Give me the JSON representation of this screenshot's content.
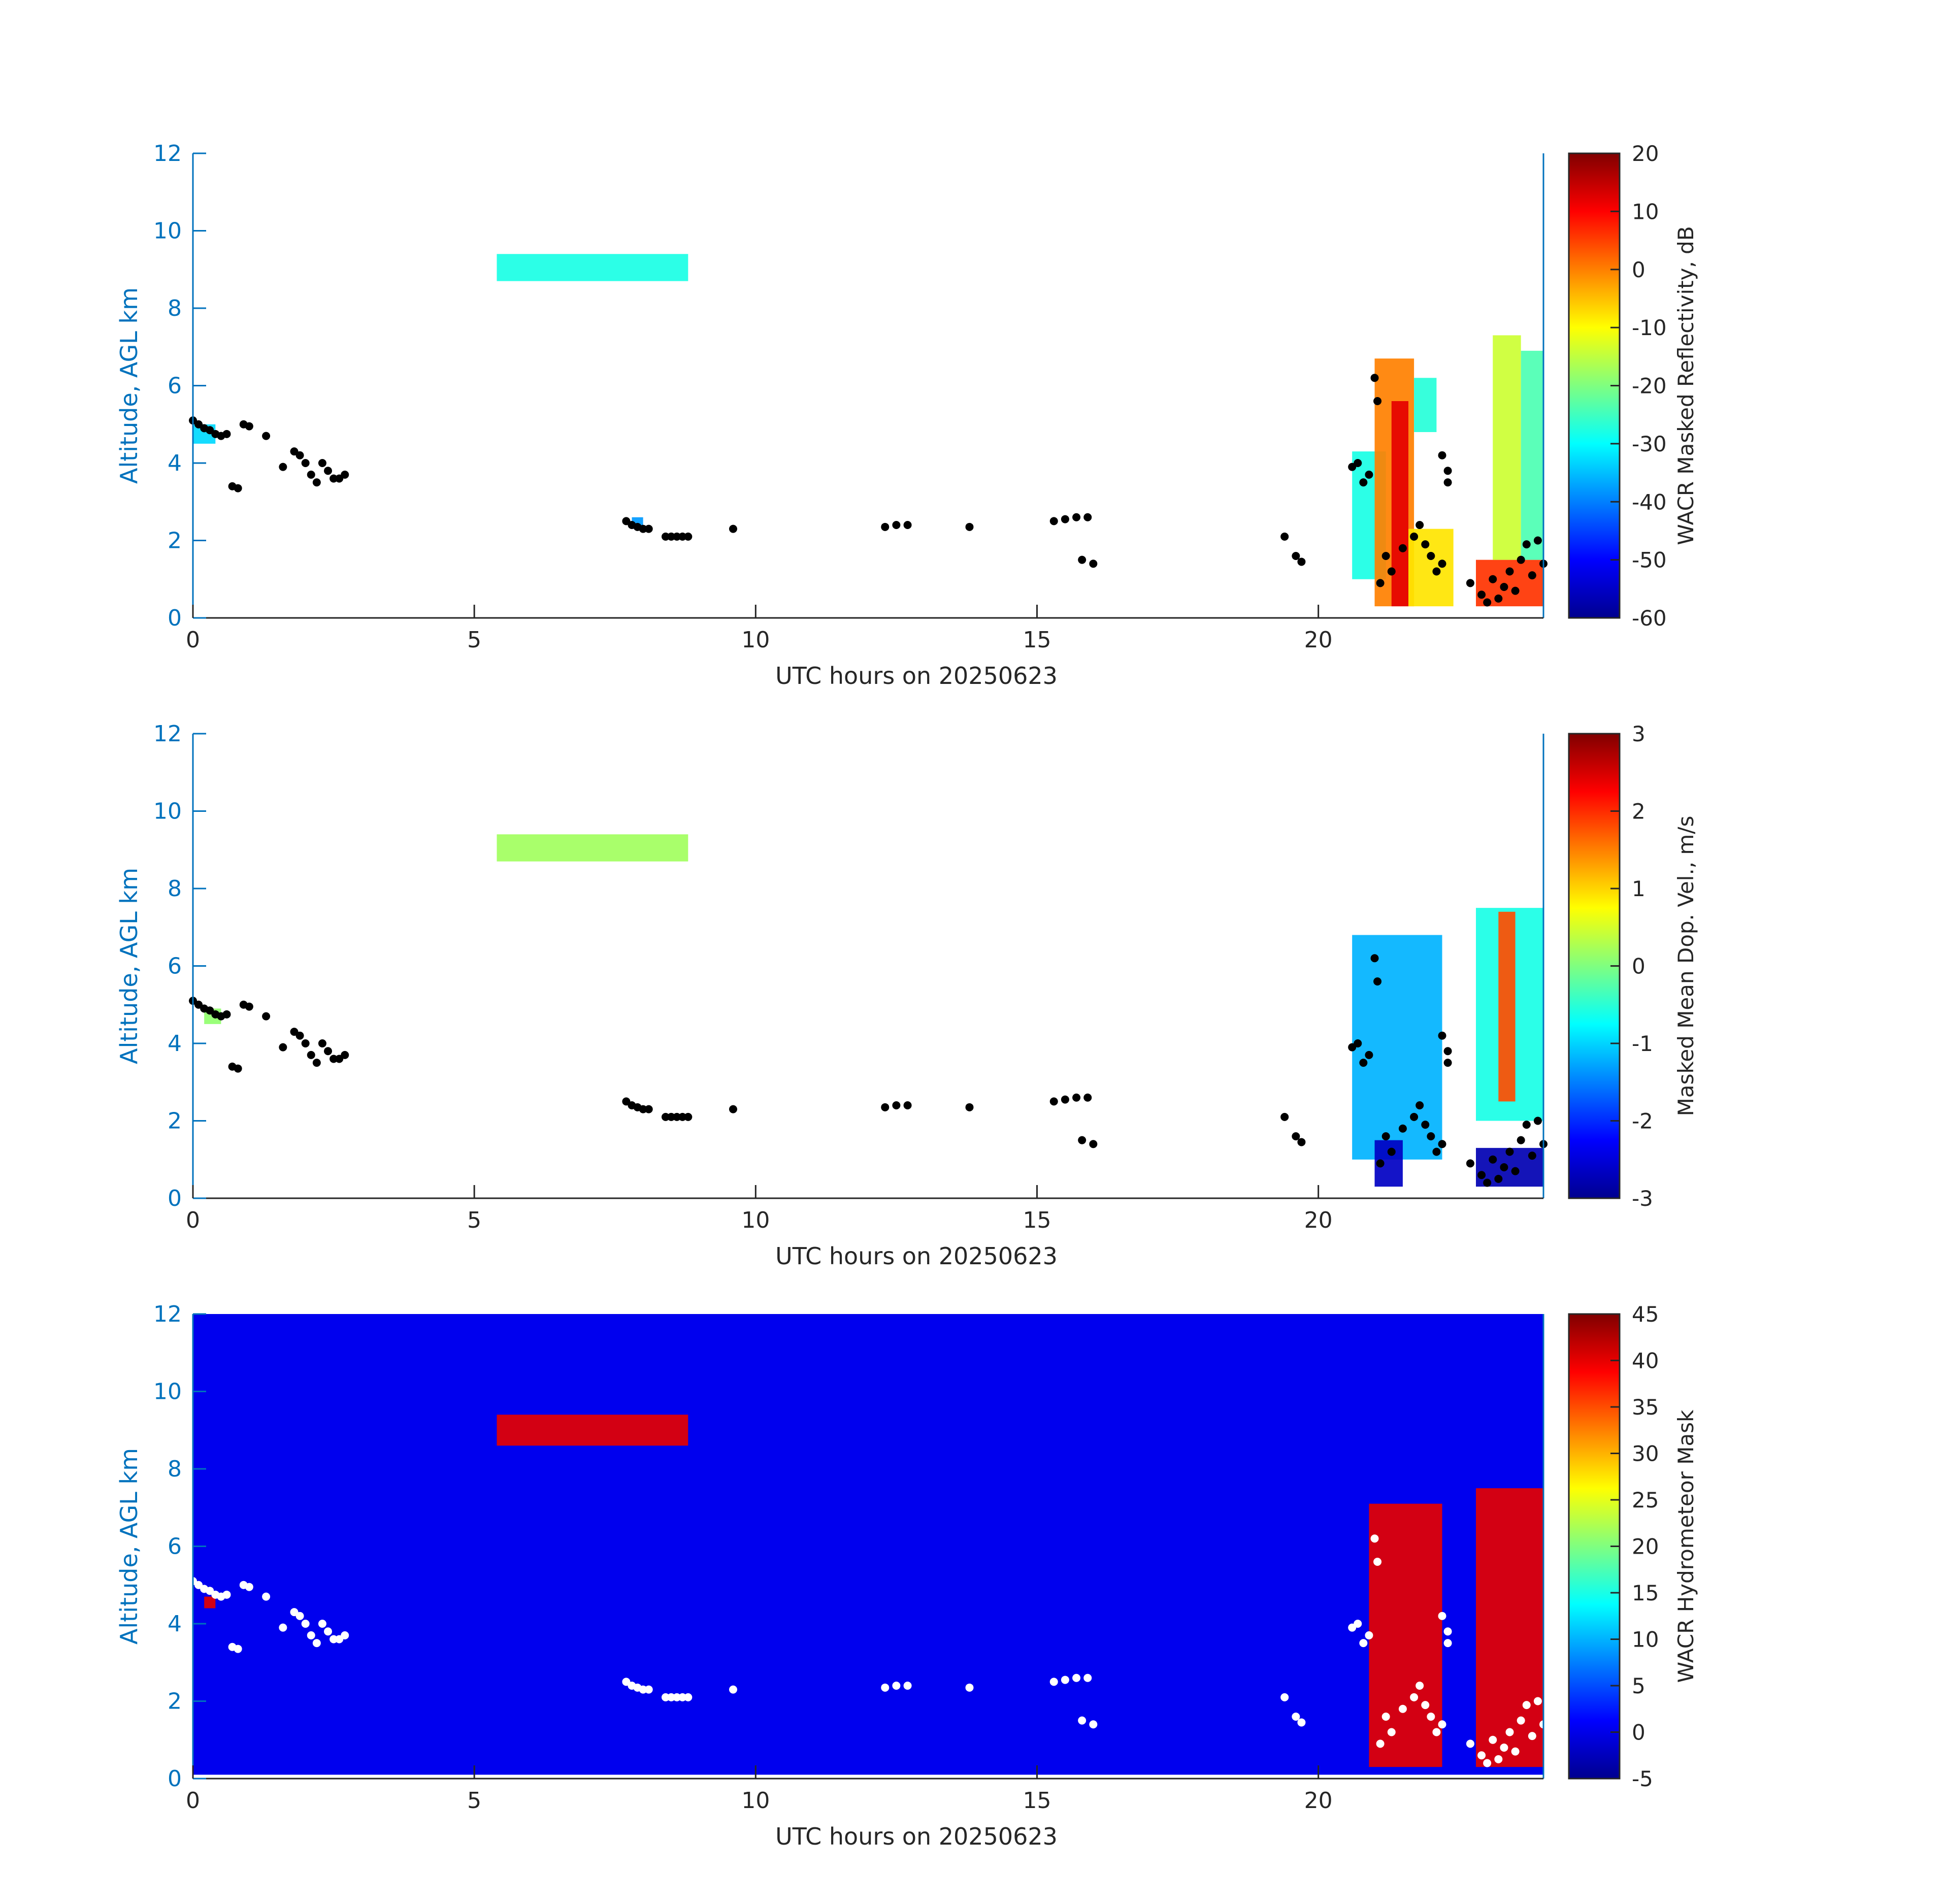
{
  "figure": {
    "panels": [
      {
        "id": "reflectivity",
        "colorbar_label": "WACR Masked Reflectivity, dB",
        "clim": [
          -60,
          20
        ],
        "cbar_ticks": [
          20,
          10,
          0,
          -10,
          -20,
          -30,
          -40,
          -50,
          -60
        ],
        "background": "none",
        "cloud_bases_color": "#000000"
      },
      {
        "id": "doppler",
        "colorbar_label": "Masked Mean Dop. Vel., m/s",
        "clim": [
          -3,
          3
        ],
        "cbar_ticks": [
          3,
          2,
          1,
          0,
          -1,
          -2,
          -3
        ],
        "background": "none",
        "cloud_bases_color": "#000000"
      },
      {
        "id": "mask",
        "colorbar_label": "WACR Hydrometeor Mask",
        "clim": [
          -5,
          45
        ],
        "cbar_ticks": [
          45,
          40,
          35,
          30,
          25,
          20,
          15,
          10,
          5,
          0,
          -5
        ],
        "background": "#0000ee",
        "cloud_bases_color": "#ffffff"
      }
    ],
    "x_label": "UTC hours on 20250623",
    "y_label": "Altitude, AGL km",
    "x_ticks": [
      0,
      5,
      10,
      15,
      20
    ],
    "y_ticks": [
      0,
      2,
      4,
      6,
      8,
      10,
      12
    ],
    "xlim": [
      0,
      24
    ],
    "ylim": [
      0,
      12
    ],
    "colors": {
      "axis_y": "#0072bd",
      "axis_x": "#262626",
      "text": "#262626"
    }
  },
  "chart_data": [
    {
      "type": "heatmap",
      "title": "",
      "xlabel": "UTC hours on 20250623",
      "ylabel": "Altitude, AGL km",
      "xlim": [
        0,
        24
      ],
      "ylim": [
        0,
        12
      ],
      "colorbar": {
        "label": "WACR Masked Reflectivity, dB",
        "range": [
          -60,
          20
        ],
        "colormap": "jet"
      },
      "regions": [
        {
          "x_start": 5.4,
          "x_end": 8.8,
          "y_bottom": 8.7,
          "y_top": 9.4,
          "value": -28
        },
        {
          "x_start": 0.0,
          "x_end": 0.4,
          "y_bottom": 4.5,
          "y_top": 5.0,
          "value": -33
        },
        {
          "x_start": 7.8,
          "x_end": 8.0,
          "y_bottom": 2.3,
          "y_top": 2.6,
          "value": -38
        },
        {
          "x_start": 20.6,
          "x_end": 21.2,
          "y_bottom": 1.0,
          "y_top": 4.3,
          "value": -28
        },
        {
          "x_start": 21.0,
          "x_end": 21.7,
          "y_bottom": 0.3,
          "y_top": 6.7,
          "value": 0
        },
        {
          "x_start": 21.3,
          "x_end": 21.6,
          "y_bottom": 0.3,
          "y_top": 5.6,
          "value": 12
        },
        {
          "x_start": 21.7,
          "x_end": 22.1,
          "y_bottom": 4.8,
          "y_top": 6.2,
          "value": -27
        },
        {
          "x_start": 21.6,
          "x_end": 22.4,
          "y_bottom": 0.3,
          "y_top": 2.3,
          "value": -8
        },
        {
          "x_start": 22.8,
          "x_end": 24.0,
          "y_bottom": 0.3,
          "y_top": 1.5,
          "value": 6
        },
        {
          "x_start": 23.1,
          "x_end": 23.6,
          "y_bottom": 1.5,
          "y_top": 7.3,
          "value": -14
        },
        {
          "x_start": 23.6,
          "x_end": 24.0,
          "y_bottom": 1.5,
          "y_top": 6.9,
          "value": -24
        }
      ],
      "cloud_base_points": [
        [
          0.0,
          5.1
        ],
        [
          0.1,
          5.0
        ],
        [
          0.2,
          4.9
        ],
        [
          0.3,
          4.85
        ],
        [
          0.4,
          4.75
        ],
        [
          0.5,
          4.7
        ],
        [
          0.6,
          4.75
        ],
        [
          0.7,
          3.4
        ],
        [
          0.8,
          3.35
        ],
        [
          0.9,
          5.0
        ],
        [
          1.0,
          4.95
        ],
        [
          1.3,
          4.7
        ],
        [
          1.6,
          3.9
        ],
        [
          1.8,
          4.3
        ],
        [
          1.9,
          4.2
        ],
        [
          2.0,
          4.0
        ],
        [
          2.1,
          3.7
        ],
        [
          2.2,
          3.5
        ],
        [
          2.3,
          4.0
        ],
        [
          2.4,
          3.8
        ],
        [
          2.5,
          3.6
        ],
        [
          2.6,
          3.6
        ],
        [
          2.7,
          3.7
        ],
        [
          7.7,
          2.5
        ],
        [
          7.8,
          2.4
        ],
        [
          7.9,
          2.35
        ],
        [
          8.0,
          2.3
        ],
        [
          8.1,
          2.3
        ],
        [
          8.4,
          2.1
        ],
        [
          8.5,
          2.1
        ],
        [
          8.6,
          2.1
        ],
        [
          8.7,
          2.1
        ],
        [
          8.8,
          2.1
        ],
        [
          9.6,
          2.3
        ],
        [
          12.3,
          2.35
        ],
        [
          12.5,
          2.4
        ],
        [
          12.7,
          2.4
        ],
        [
          13.8,
          2.35
        ],
        [
          15.3,
          2.5
        ],
        [
          15.5,
          2.55
        ],
        [
          15.7,
          2.6
        ],
        [
          15.9,
          2.6
        ],
        [
          15.8,
          1.5
        ],
        [
          16.0,
          1.4
        ],
        [
          19.4,
          2.1
        ],
        [
          19.6,
          1.6
        ],
        [
          19.7,
          1.45
        ],
        [
          20.6,
          3.9
        ],
        [
          20.7,
          4.0
        ],
        [
          20.8,
          3.5
        ],
        [
          20.9,
          3.7
        ],
        [
          21.0,
          6.2
        ],
        [
          21.05,
          5.6
        ],
        [
          21.1,
          0.9
        ],
        [
          21.2,
          1.6
        ],
        [
          21.3,
          1.2
        ],
        [
          21.5,
          1.8
        ],
        [
          21.7,
          2.1
        ],
        [
          21.8,
          2.4
        ],
        [
          21.9,
          1.9
        ],
        [
          22.0,
          1.6
        ],
        [
          22.1,
          1.2
        ],
        [
          22.2,
          1.4
        ],
        [
          22.2,
          4.2
        ],
        [
          22.3,
          3.8
        ],
        [
          22.3,
          3.5
        ],
        [
          22.7,
          0.9
        ],
        [
          22.9,
          0.6
        ],
        [
          23.0,
          0.4
        ],
        [
          23.1,
          1.0
        ],
        [
          23.2,
          0.5
        ],
        [
          23.3,
          0.8
        ],
        [
          23.4,
          1.2
        ],
        [
          23.5,
          0.7
        ],
        [
          23.6,
          1.5
        ],
        [
          23.7,
          1.9
        ],
        [
          23.8,
          1.1
        ],
        [
          23.9,
          2.0
        ],
        [
          24.0,
          1.4
        ]
      ]
    },
    {
      "type": "heatmap",
      "title": "",
      "xlabel": "UTC hours on 20250623",
      "ylabel": "Altitude, AGL km",
      "xlim": [
        0,
        24
      ],
      "ylim": [
        0,
        12
      ],
      "colorbar": {
        "label": "Masked Mean Dop. Vel., m/s",
        "range": [
          -3,
          3
        ],
        "colormap": "jet"
      },
      "regions": [
        {
          "x_start": 5.4,
          "x_end": 8.8,
          "y_bottom": 8.7,
          "y_top": 9.4,
          "value": 0.2
        },
        {
          "x_start": 0.2,
          "x_end": 0.5,
          "y_bottom": 4.5,
          "y_top": 4.9,
          "value": 0.1
        },
        {
          "x_start": 20.6,
          "x_end": 22.2,
          "y_bottom": 1.0,
          "y_top": 6.8,
          "value": -1.2
        },
        {
          "x_start": 21.0,
          "x_end": 21.5,
          "y_bottom": 0.3,
          "y_top": 1.5,
          "value": -2.6
        },
        {
          "x_start": 22.8,
          "x_end": 24.0,
          "y_bottom": 2.0,
          "y_top": 7.5,
          "value": -0.6
        },
        {
          "x_start": 23.2,
          "x_end": 23.5,
          "y_bottom": 2.5,
          "y_top": 7.4,
          "value": 1.8
        },
        {
          "x_start": 22.8,
          "x_end": 24.0,
          "y_bottom": 0.3,
          "y_top": 1.3,
          "value": -2.7
        }
      ],
      "cloud_base_points": [
        [
          0.0,
          5.1
        ],
        [
          0.1,
          5.0
        ],
        [
          0.2,
          4.9
        ],
        [
          0.3,
          4.85
        ],
        [
          0.4,
          4.75
        ],
        [
          0.5,
          4.7
        ],
        [
          0.6,
          4.75
        ],
        [
          0.7,
          3.4
        ],
        [
          0.8,
          3.35
        ],
        [
          0.9,
          5.0
        ],
        [
          1.0,
          4.95
        ],
        [
          1.3,
          4.7
        ],
        [
          1.6,
          3.9
        ],
        [
          1.8,
          4.3
        ],
        [
          1.9,
          4.2
        ],
        [
          2.0,
          4.0
        ],
        [
          2.1,
          3.7
        ],
        [
          2.2,
          3.5
        ],
        [
          2.3,
          4.0
        ],
        [
          2.4,
          3.8
        ],
        [
          2.5,
          3.6
        ],
        [
          2.6,
          3.6
        ],
        [
          2.7,
          3.7
        ],
        [
          7.7,
          2.5
        ],
        [
          7.8,
          2.4
        ],
        [
          7.9,
          2.35
        ],
        [
          8.0,
          2.3
        ],
        [
          8.1,
          2.3
        ],
        [
          8.4,
          2.1
        ],
        [
          8.5,
          2.1
        ],
        [
          8.6,
          2.1
        ],
        [
          8.7,
          2.1
        ],
        [
          8.8,
          2.1
        ],
        [
          9.6,
          2.3
        ],
        [
          12.3,
          2.35
        ],
        [
          12.5,
          2.4
        ],
        [
          12.7,
          2.4
        ],
        [
          13.8,
          2.35
        ],
        [
          15.3,
          2.5
        ],
        [
          15.5,
          2.55
        ],
        [
          15.7,
          2.6
        ],
        [
          15.9,
          2.6
        ],
        [
          15.8,
          1.5
        ],
        [
          16.0,
          1.4
        ],
        [
          19.4,
          2.1
        ],
        [
          19.6,
          1.6
        ],
        [
          19.7,
          1.45
        ],
        [
          20.6,
          3.9
        ],
        [
          20.7,
          4.0
        ],
        [
          20.8,
          3.5
        ],
        [
          20.9,
          3.7
        ],
        [
          21.0,
          6.2
        ],
        [
          21.05,
          5.6
        ],
        [
          21.1,
          0.9
        ],
        [
          21.2,
          1.6
        ],
        [
          21.3,
          1.2
        ],
        [
          21.5,
          1.8
        ],
        [
          21.7,
          2.1
        ],
        [
          21.8,
          2.4
        ],
        [
          21.9,
          1.9
        ],
        [
          22.0,
          1.6
        ],
        [
          22.1,
          1.2
        ],
        [
          22.2,
          1.4
        ],
        [
          22.2,
          4.2
        ],
        [
          22.3,
          3.8
        ],
        [
          22.3,
          3.5
        ],
        [
          22.7,
          0.9
        ],
        [
          22.9,
          0.6
        ],
        [
          23.0,
          0.4
        ],
        [
          23.1,
          1.0
        ],
        [
          23.2,
          0.5
        ],
        [
          23.3,
          0.8
        ],
        [
          23.4,
          1.2
        ],
        [
          23.5,
          0.7
        ],
        [
          23.6,
          1.5
        ],
        [
          23.7,
          1.9
        ],
        [
          23.8,
          1.1
        ],
        [
          23.9,
          2.0
        ],
        [
          24.0,
          1.4
        ]
      ]
    },
    {
      "type": "heatmap",
      "title": "",
      "xlabel": "UTC hours on 20250623",
      "ylabel": "Altitude, AGL km",
      "xlim": [
        0,
        24
      ],
      "ylim": [
        0,
        12
      ],
      "colorbar": {
        "label": "WACR Hydrometeor Mask",
        "range": [
          -5,
          45
        ],
        "colormap": "jet"
      },
      "background_value": 0,
      "background_y_range": [
        0.1,
        12
      ],
      "regions": [
        {
          "x_start": 5.4,
          "x_end": 8.8,
          "y_bottom": 8.6,
          "y_top": 9.4,
          "value": 40
        },
        {
          "x_start": 0.2,
          "x_end": 0.4,
          "y_bottom": 4.4,
          "y_top": 4.7,
          "value": 40
        },
        {
          "x_start": 20.9,
          "x_end": 22.2,
          "y_bottom": 0.3,
          "y_top": 7.1,
          "value": 40
        },
        {
          "x_start": 22.8,
          "x_end": 24.0,
          "y_bottom": 0.3,
          "y_top": 7.5,
          "value": 40
        }
      ],
      "cloud_base_points": [
        [
          0.0,
          5.1
        ],
        [
          0.1,
          5.0
        ],
        [
          0.2,
          4.9
        ],
        [
          0.3,
          4.85
        ],
        [
          0.4,
          4.75
        ],
        [
          0.5,
          4.7
        ],
        [
          0.6,
          4.75
        ],
        [
          0.7,
          3.4
        ],
        [
          0.8,
          3.35
        ],
        [
          0.9,
          5.0
        ],
        [
          1.0,
          4.95
        ],
        [
          1.3,
          4.7
        ],
        [
          1.6,
          3.9
        ],
        [
          1.8,
          4.3
        ],
        [
          1.9,
          4.2
        ],
        [
          2.0,
          4.0
        ],
        [
          2.1,
          3.7
        ],
        [
          2.2,
          3.5
        ],
        [
          2.3,
          4.0
        ],
        [
          2.4,
          3.8
        ],
        [
          2.5,
          3.6
        ],
        [
          2.6,
          3.6
        ],
        [
          2.7,
          3.7
        ],
        [
          7.7,
          2.5
        ],
        [
          7.8,
          2.4
        ],
        [
          7.9,
          2.35
        ],
        [
          8.0,
          2.3
        ],
        [
          8.1,
          2.3
        ],
        [
          8.4,
          2.1
        ],
        [
          8.5,
          2.1
        ],
        [
          8.6,
          2.1
        ],
        [
          8.7,
          2.1
        ],
        [
          8.8,
          2.1
        ],
        [
          9.6,
          2.3
        ],
        [
          12.3,
          2.35
        ],
        [
          12.5,
          2.4
        ],
        [
          12.7,
          2.4
        ],
        [
          13.8,
          2.35
        ],
        [
          15.3,
          2.5
        ],
        [
          15.5,
          2.55
        ],
        [
          15.7,
          2.6
        ],
        [
          15.9,
          2.6
        ],
        [
          15.8,
          1.5
        ],
        [
          16.0,
          1.4
        ],
        [
          19.4,
          2.1
        ],
        [
          19.6,
          1.6
        ],
        [
          19.7,
          1.45
        ],
        [
          20.6,
          3.9
        ],
        [
          20.7,
          4.0
        ],
        [
          20.8,
          3.5
        ],
        [
          20.9,
          3.7
        ],
        [
          21.0,
          6.2
        ],
        [
          21.05,
          5.6
        ],
        [
          21.1,
          0.9
        ],
        [
          21.2,
          1.6
        ],
        [
          21.3,
          1.2
        ],
        [
          21.5,
          1.8
        ],
        [
          21.7,
          2.1
        ],
        [
          21.8,
          2.4
        ],
        [
          21.9,
          1.9
        ],
        [
          22.0,
          1.6
        ],
        [
          22.1,
          1.2
        ],
        [
          22.2,
          1.4
        ],
        [
          22.2,
          4.2
        ],
        [
          22.3,
          3.8
        ],
        [
          22.3,
          3.5
        ],
        [
          22.7,
          0.9
        ],
        [
          22.9,
          0.6
        ],
        [
          23.0,
          0.4
        ],
        [
          23.1,
          1.0
        ],
        [
          23.2,
          0.5
        ],
        [
          23.3,
          0.8
        ],
        [
          23.4,
          1.2
        ],
        [
          23.5,
          0.7
        ],
        [
          23.6,
          1.5
        ],
        [
          23.7,
          1.9
        ],
        [
          23.8,
          1.1
        ],
        [
          23.9,
          2.0
        ],
        [
          24.0,
          1.4
        ]
      ]
    }
  ]
}
